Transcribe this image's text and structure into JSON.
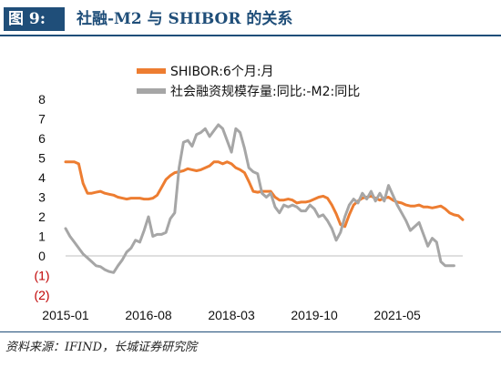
{
  "figure": {
    "tag": "图 9:",
    "title": "社融-M2 与 SHIBOR 的关系",
    "source": "资料来源：IFIND，长城证券研究院"
  },
  "colors": {
    "header": "#1f4e79",
    "shibor": "#ed7d31",
    "tsf_m2": "#a6a6a6",
    "negative_tick": "#c00000",
    "text": "#111111"
  },
  "chart_data": {
    "type": "line",
    "title": "",
    "xlabel": "",
    "ylabel": "",
    "ylim": [
      -2,
      8
    ],
    "x_tick_labels": [
      "2015-01",
      "2016-08",
      "2018-03",
      "2019-10",
      "2021-05"
    ],
    "x_tick_dates": [
      "2015-01",
      "2016-08",
      "2018-03",
      "2019-10",
      "2021-05"
    ],
    "y_tick_labels": [
      "8",
      "7",
      "6",
      "5",
      "4",
      "3",
      "2",
      "1",
      "0",
      "(1)",
      "(2)"
    ],
    "y_tick_values": [
      8,
      7,
      6,
      5,
      4,
      3,
      2,
      1,
      0,
      -1,
      -2
    ],
    "grid": false,
    "legend_position": "top-right",
    "series": [
      {
        "name": "SHIBOR:6个月:月",
        "points": [
          [
            "2015-01",
            4.8
          ],
          [
            "2015-02",
            4.8
          ],
          [
            "2015-03",
            4.8
          ],
          [
            "2015-04",
            4.7
          ],
          [
            "2015-05",
            3.7
          ],
          [
            "2015-06",
            3.2
          ],
          [
            "2015-07",
            3.2
          ],
          [
            "2015-08",
            3.25
          ],
          [
            "2015-09",
            3.3
          ],
          [
            "2015-10",
            3.2
          ],
          [
            "2015-11",
            3.15
          ],
          [
            "2015-12",
            3.1
          ],
          [
            "2016-01",
            3.0
          ],
          [
            "2016-02",
            2.95
          ],
          [
            "2016-03",
            2.9
          ],
          [
            "2016-04",
            2.95
          ],
          [
            "2016-05",
            2.95
          ],
          [
            "2016-06",
            2.95
          ],
          [
            "2016-07",
            2.9
          ],
          [
            "2016-08",
            2.9
          ],
          [
            "2016-09",
            2.95
          ],
          [
            "2016-10",
            3.1
          ],
          [
            "2016-11",
            3.5
          ],
          [
            "2016-12",
            3.9
          ],
          [
            "2017-01",
            4.1
          ],
          [
            "2017-02",
            4.25
          ],
          [
            "2017-03",
            4.3
          ],
          [
            "2017-04",
            4.35
          ],
          [
            "2017-05",
            4.45
          ],
          [
            "2017-06",
            4.4
          ],
          [
            "2017-07",
            4.35
          ],
          [
            "2017-08",
            4.4
          ],
          [
            "2017-09",
            4.5
          ],
          [
            "2017-10",
            4.6
          ],
          [
            "2017-11",
            4.8
          ],
          [
            "2017-12",
            4.8
          ],
          [
            "2018-01",
            4.7
          ],
          [
            "2018-02",
            4.8
          ],
          [
            "2018-03",
            4.7
          ],
          [
            "2018-04",
            4.5
          ],
          [
            "2018-05",
            4.4
          ],
          [
            "2018-06",
            4.25
          ],
          [
            "2018-07",
            3.8
          ],
          [
            "2018-08",
            3.3
          ],
          [
            "2018-09",
            3.25
          ],
          [
            "2018-10",
            3.3
          ],
          [
            "2018-11",
            3.3
          ],
          [
            "2018-12",
            3.3
          ],
          [
            "2019-01",
            3.0
          ],
          [
            "2019-02",
            2.85
          ],
          [
            "2019-03",
            2.85
          ],
          [
            "2019-04",
            2.9
          ],
          [
            "2019-05",
            2.85
          ],
          [
            "2019-06",
            2.7
          ],
          [
            "2019-07",
            2.75
          ],
          [
            "2019-08",
            2.75
          ],
          [
            "2019-09",
            2.8
          ],
          [
            "2019-10",
            2.9
          ],
          [
            "2019-11",
            3.0
          ],
          [
            "2019-12",
            3.05
          ],
          [
            "2020-01",
            2.95
          ],
          [
            "2020-02",
            2.6
          ],
          [
            "2020-03",
            2.15
          ],
          [
            "2020-04",
            1.6
          ],
          [
            "2020-05",
            1.5
          ],
          [
            "2020-06",
            2.1
          ],
          [
            "2020-07",
            2.6
          ],
          [
            "2020-08",
            2.8
          ],
          [
            "2020-09",
            2.95
          ],
          [
            "2020-10",
            3.0
          ],
          [
            "2020-11",
            3.05
          ],
          [
            "2020-12",
            2.95
          ],
          [
            "2021-01",
            2.85
          ],
          [
            "2021-02",
            2.95
          ],
          [
            "2021-03",
            3.0
          ],
          [
            "2021-04",
            2.85
          ],
          [
            "2021-05",
            2.75
          ],
          [
            "2021-06",
            2.7
          ],
          [
            "2021-07",
            2.6
          ],
          [
            "2021-08",
            2.55
          ],
          [
            "2021-09",
            2.55
          ],
          [
            "2021-10",
            2.6
          ],
          [
            "2021-11",
            2.5
          ],
          [
            "2021-12",
            2.5
          ],
          [
            "2022-01",
            2.45
          ],
          [
            "2022-02",
            2.5
          ],
          [
            "2022-03",
            2.55
          ],
          [
            "2022-04",
            2.4
          ],
          [
            "2022-05",
            2.2
          ],
          [
            "2022-06",
            2.1
          ],
          [
            "2022-07",
            2.05
          ],
          [
            "2022-08",
            1.85
          ]
        ]
      },
      {
        "name": "社会融资规模存量:同比:-M2:同比",
        "points": [
          [
            "2015-01",
            1.4
          ],
          [
            "2015-02",
            1.0
          ],
          [
            "2015-03",
            0.7
          ],
          [
            "2015-04",
            0.4
          ],
          [
            "2015-05",
            0.1
          ],
          [
            "2015-06",
            -0.1
          ],
          [
            "2015-07",
            -0.3
          ],
          [
            "2015-08",
            -0.5
          ],
          [
            "2015-09",
            -0.55
          ],
          [
            "2015-10",
            -0.7
          ],
          [
            "2015-11",
            -0.8
          ],
          [
            "2015-12",
            -0.85
          ],
          [
            "2016-01",
            -0.5
          ],
          [
            "2016-02",
            -0.2
          ],
          [
            "2016-03",
            0.2
          ],
          [
            "2016-04",
            0.4
          ],
          [
            "2016-05",
            0.8
          ],
          [
            "2016-06",
            0.7
          ],
          [
            "2016-07",
            1.3
          ],
          [
            "2016-08",
            2.0
          ],
          [
            "2016-09",
            1.0
          ],
          [
            "2016-10",
            1.1
          ],
          [
            "2016-11",
            1.1
          ],
          [
            "2016-12",
            1.2
          ],
          [
            "2017-01",
            1.9
          ],
          [
            "2017-02",
            2.2
          ],
          [
            "2017-03",
            4.5
          ],
          [
            "2017-04",
            5.8
          ],
          [
            "2017-05",
            5.9
          ],
          [
            "2017-06",
            5.6
          ],
          [
            "2017-07",
            6.2
          ],
          [
            "2017-08",
            6.3
          ],
          [
            "2017-09",
            6.5
          ],
          [
            "2017-10",
            6.1
          ],
          [
            "2017-11",
            6.4
          ],
          [
            "2017-12",
            6.7
          ],
          [
            "2018-01",
            6.5
          ],
          [
            "2018-02",
            5.9
          ],
          [
            "2018-03",
            5.3
          ],
          [
            "2018-04",
            6.5
          ],
          [
            "2018-05",
            6.3
          ],
          [
            "2018-06",
            5.5
          ],
          [
            "2018-07",
            4.5
          ],
          [
            "2018-08",
            4.3
          ],
          [
            "2018-09",
            4.2
          ],
          [
            "2018-10",
            3.2
          ],
          [
            "2018-11",
            3.0
          ],
          [
            "2018-12",
            3.2
          ],
          [
            "2019-01",
            2.5
          ],
          [
            "2019-02",
            2.2
          ],
          [
            "2019-03",
            2.6
          ],
          [
            "2019-04",
            2.5
          ],
          [
            "2019-05",
            2.6
          ],
          [
            "2019-06",
            2.5
          ],
          [
            "2019-07",
            2.3
          ],
          [
            "2019-08",
            2.3
          ],
          [
            "2019-09",
            2.6
          ],
          [
            "2019-10",
            2.4
          ],
          [
            "2019-11",
            2.0
          ],
          [
            "2019-12",
            2.1
          ],
          [
            "2020-01",
            1.8
          ],
          [
            "2020-02",
            1.4
          ],
          [
            "2020-03",
            0.8
          ],
          [
            "2020-04",
            1.2
          ],
          [
            "2020-05",
            2.0
          ],
          [
            "2020-06",
            2.6
          ],
          [
            "2020-07",
            2.9
          ],
          [
            "2020-08",
            2.7
          ],
          [
            "2020-09",
            3.2
          ],
          [
            "2020-10",
            2.9
          ],
          [
            "2020-11",
            3.3
          ],
          [
            "2020-12",
            2.8
          ],
          [
            "2021-01",
            3.2
          ],
          [
            "2021-02",
            2.8
          ],
          [
            "2021-03",
            3.6
          ],
          [
            "2021-04",
            3.1
          ],
          [
            "2021-05",
            2.6
          ],
          [
            "2021-06",
            2.2
          ],
          [
            "2021-07",
            1.8
          ],
          [
            "2021-08",
            1.3
          ],
          [
            "2021-09",
            1.5
          ],
          [
            "2021-10",
            1.7
          ],
          [
            "2021-11",
            1.1
          ],
          [
            "2021-12",
            0.5
          ],
          [
            "2022-01",
            0.9
          ],
          [
            "2022-02",
            0.7
          ],
          [
            "2022-03",
            -0.3
          ],
          [
            "2022-04",
            -0.5
          ],
          [
            "2022-05",
            -0.5
          ],
          [
            "2022-06",
            -0.5
          ]
        ]
      }
    ]
  }
}
